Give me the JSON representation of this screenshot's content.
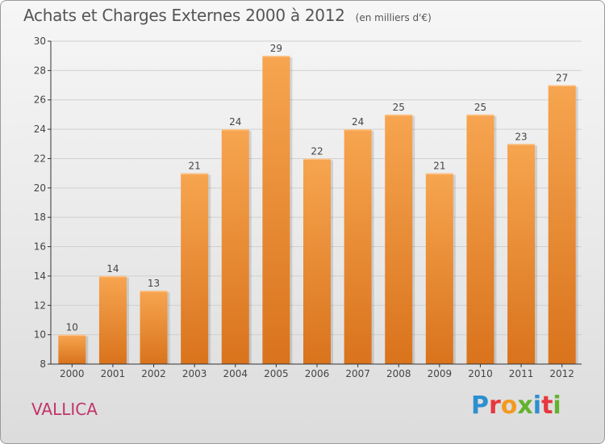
{
  "header": {
    "title": "Achats et Charges Externes 2000 à 2012",
    "unit_note": "(en milliers d'€)"
  },
  "footer": {
    "commune": "VALLICA",
    "logo_letters": [
      "P",
      "r",
      "o",
      "x",
      "i",
      "t",
      "i"
    ],
    "logo_colors": [
      "#2e8fd0",
      "#e6383e",
      "#f29a1f",
      "#63b22f",
      "#2e8fd0",
      "#e6383e",
      "#63b22f"
    ]
  },
  "colors": {
    "bar_top": "#f7a550",
    "bar_bottom": "#d9731c",
    "axis": "#333333",
    "grid": "#d0d0d0"
  },
  "chart_data": {
    "type": "bar",
    "title": "Achats et Charges Externes 2000 à 2012",
    "subtitle": "(en milliers d'€)",
    "xlabel": "",
    "ylabel": "",
    "categories": [
      "2000",
      "2001",
      "2002",
      "2003",
      "2004",
      "2005",
      "2006",
      "2007",
      "2008",
      "2009",
      "2010",
      "2011",
      "2012"
    ],
    "values": [
      10,
      14,
      13,
      21,
      24,
      29,
      22,
      24,
      25,
      21,
      25,
      23,
      27
    ],
    "ylim": [
      8,
      30
    ],
    "yticks": [
      8,
      10,
      12,
      14,
      16,
      18,
      20,
      22,
      24,
      26,
      28,
      30
    ],
    "grid": true,
    "data_labels": true
  }
}
